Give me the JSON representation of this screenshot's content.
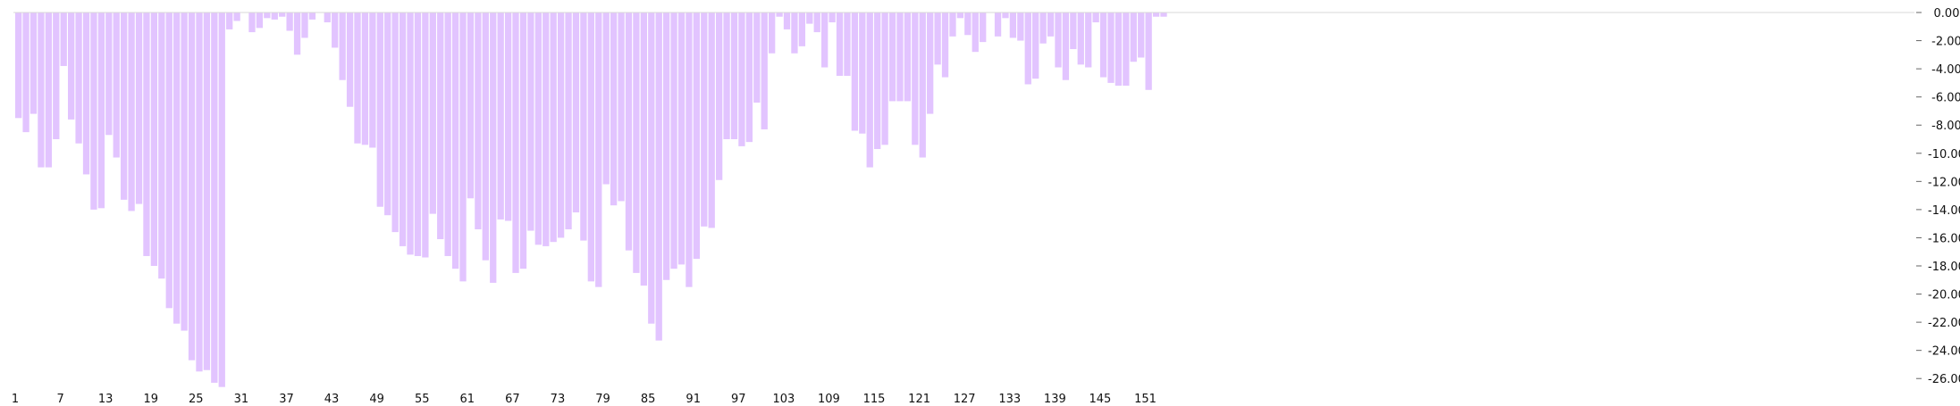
{
  "chart_data": {
    "type": "bar",
    "title": "",
    "xlabel": "",
    "ylabel": "",
    "ylim": [
      -27,
      0
    ],
    "grid": false,
    "legend": "none",
    "bar_color": "#e2c4ff",
    "axis_color": "#d9d9d9",
    "text_color": "#111111",
    "x_tick_labels": [
      "1",
      "7",
      "13",
      "19",
      "25",
      "31",
      "37",
      "43",
      "49",
      "55",
      "61",
      "67",
      "73",
      "79",
      "85",
      "91",
      "97",
      "103",
      "109",
      "115",
      "121",
      "127",
      "133",
      "139",
      "145",
      "151"
    ],
    "y_tick_labels": [
      "0.00",
      "-2.00",
      "-4.00",
      "-6.00",
      "-8.00",
      "-10.00",
      "-12.00",
      "-14.00",
      "-16.00",
      "-18.00",
      "-20.00",
      "-22.00",
      "-24.00",
      "-26.00"
    ],
    "y_tick_values": [
      0,
      -2,
      -4,
      -6,
      -8,
      -10,
      -12,
      -14,
      -16,
      -18,
      -20,
      -22,
      -24,
      -26
    ],
    "values": [
      -7.5,
      -8.5,
      -7.2,
      -11.0,
      -11.0,
      -9.0,
      -3.8,
      -7.6,
      -9.3,
      -11.5,
      -14.0,
      -13.9,
      -8.7,
      -10.3,
      -13.3,
      -14.1,
      -13.6,
      -17.3,
      -18.0,
      -18.9,
      -21.0,
      -22.1,
      -22.6,
      -24.7,
      -25.5,
      -25.4,
      -26.3,
      -26.6,
      -1.2,
      -0.6,
      0.0,
      -1.4,
      -1.1,
      -0.4,
      -0.5,
      -0.3,
      -1.3,
      -3.0,
      -1.8,
      -0.5,
      0.0,
      -0.7,
      -2.5,
      -4.8,
      -6.7,
      -9.3,
      -9.4,
      -9.6,
      -13.8,
      -14.4,
      -15.6,
      -16.6,
      -17.2,
      -17.3,
      -17.4,
      -14.3,
      -16.1,
      -17.3,
      -18.2,
      -19.1,
      -13.2,
      -15.4,
      -17.6,
      -19.2,
      -14.7,
      -14.8,
      -18.5,
      -18.2,
      -15.5,
      -16.5,
      -16.6,
      -16.3,
      -16.0,
      -15.4,
      -14.2,
      -16.2,
      -19.1,
      -19.5,
      -12.2,
      -13.7,
      -13.4,
      -16.9,
      -18.5,
      -19.4,
      -22.1,
      -23.3,
      -19.0,
      -18.2,
      -17.9,
      -19.5,
      -17.5,
      -15.2,
      -15.3,
      -11.9,
      -9.0,
      -9.0,
      -9.5,
      -9.2,
      -6.4,
      -8.3,
      -2.9,
      -0.3,
      -1.2,
      -2.9,
      -2.4,
      -0.8,
      -1.4,
      -3.9,
      -0.7,
      -4.5,
      -4.5,
      -8.4,
      -8.6,
      -11.0,
      -9.7,
      -9.4,
      -6.3,
      -6.3,
      -6.3,
      -9.4,
      -10.3,
      -7.2,
      -3.7,
      -4.6,
      -1.7,
      -0.4,
      -1.6,
      -2.8,
      -2.1,
      0.0,
      -1.7,
      -0.4,
      -1.8,
      -2.0,
      -5.1,
      -4.7,
      -2.2,
      -1.7,
      -3.9,
      -4.8,
      -2.6,
      -3.7,
      -3.9,
      -0.7,
      -4.6,
      -5.0,
      -5.2,
      -5.2,
      -3.5,
      -3.2,
      -5.5,
      -0.3,
      -0.3
    ]
  }
}
